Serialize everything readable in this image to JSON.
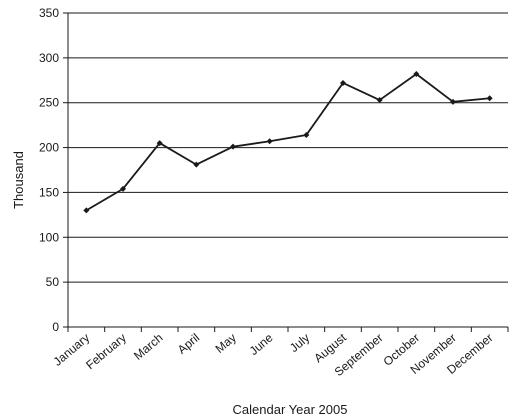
{
  "chart_data": {
    "type": "line",
    "title": "",
    "xlabel": "Calendar Year 2005",
    "ylabel": "Thousand",
    "ylim": [
      0,
      350
    ],
    "yticks": [
      0,
      50,
      100,
      150,
      200,
      250,
      300,
      350
    ],
    "grid": "horizontal",
    "legend": "none",
    "categories": [
      "January",
      "February",
      "March",
      "April",
      "May",
      "June",
      "July",
      "August",
      "September",
      "October",
      "November",
      "December"
    ],
    "series": [
      {
        "values": [
          130,
          154,
          205,
          181,
          201,
          207,
          214,
          272,
          253,
          282,
          251,
          255
        ],
        "color": "#1a1a1a",
        "marker": "diamond"
      }
    ]
  }
}
